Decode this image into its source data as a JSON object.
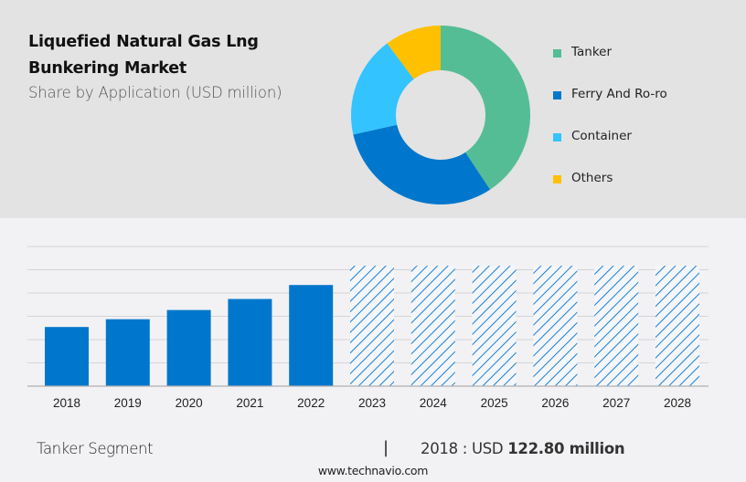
{
  "header": {
    "title_line1": "Liquefied Natural Gas Lng",
    "title_line2": "Bunkering Market",
    "subtitle": "Share by Application (USD million)"
  },
  "colors": {
    "tanker": "#55bd95",
    "ferry": "#0077cc",
    "container": "#33c3ff",
    "others": "#ffc000",
    "bar": "#0077cc",
    "forecast_hatch": "#1a7fd6",
    "grid": "#d4d4d6",
    "axis": "#b0b0b2"
  },
  "chart_data": [
    {
      "type": "pie",
      "style": "donut",
      "title": "Share by Application (USD million)",
      "categories": [
        "Tanker",
        "Ferry And Ro-ro",
        "Container",
        "Others"
      ],
      "values": [
        40.7,
        30.8,
        18.3,
        10.2
      ],
      "unit": "percent (estimated)",
      "legend_position": "right"
    },
    {
      "type": "bar",
      "title": "Tanker Segment",
      "categories": [
        "2018",
        "2019",
        "2020",
        "2021",
        "2022",
        "2023",
        "2024",
        "2025",
        "2026",
        "2027",
        "2028"
      ],
      "values": [
        122.8,
        139,
        158,
        181,
        210,
        null,
        null,
        null,
        null,
        null,
        null
      ],
      "forecast": [
        false,
        false,
        false,
        false,
        false,
        true,
        true,
        true,
        true,
        true,
        true
      ],
      "forecast_display_value": 250,
      "ylim": [
        0,
        290
      ],
      "grid": true,
      "ylabel": "",
      "xlabel": ""
    }
  ],
  "footer": {
    "segment": "Tanker Segment",
    "separator": "|",
    "value_prefix": "2018 : USD ",
    "value_bold": "122.80 million",
    "website": "www.technavio.com"
  }
}
